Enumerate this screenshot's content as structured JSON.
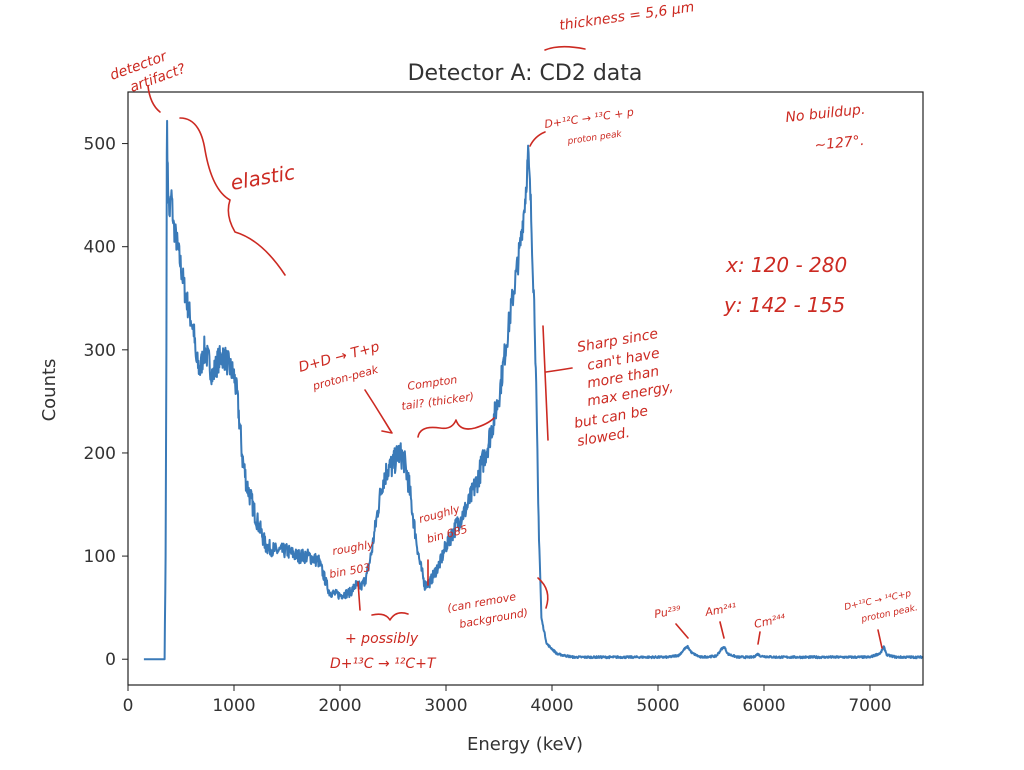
{
  "chart_data": {
    "type": "line",
    "title": "Detector A: CD2 data",
    "xlabel": "Energy (keV)",
    "ylabel": "Counts",
    "xlim": [
      0,
      7500
    ],
    "ylim": [
      -25,
      550
    ],
    "xticks": [
      0,
      1000,
      2000,
      3000,
      4000,
      5000,
      6000,
      7000
    ],
    "yticks": [
      0,
      100,
      200,
      300,
      400,
      500
    ],
    "grid": false,
    "series_color": "#3a7ab8",
    "series": [
      {
        "points": [
          [
            150,
            0
          ],
          [
            345,
            0
          ],
          [
            355,
            100
          ],
          [
            362,
            300
          ],
          [
            366,
            490
          ],
          [
            369,
            522
          ],
          [
            375,
            470
          ],
          [
            390,
            430
          ],
          [
            410,
            450
          ],
          [
            430,
            420
          ],
          [
            460,
            405
          ],
          [
            500,
            380
          ],
          [
            540,
            355
          ],
          [
            580,
            335
          ],
          [
            620,
            320
          ],
          [
            640,
            290
          ],
          [
            680,
            280
          ],
          [
            720,
            300
          ],
          [
            760,
            290
          ],
          [
            800,
            275
          ],
          [
            850,
            290
          ],
          [
            900,
            295
          ],
          [
            950,
            285
          ],
          [
            1000,
            275
          ],
          [
            1030,
            255
          ],
          [
            1060,
            220
          ],
          [
            1080,
            195
          ],
          [
            1120,
            170
          ],
          [
            1160,
            155
          ],
          [
            1200,
            140
          ],
          [
            1250,
            125
          ],
          [
            1300,
            110
          ],
          [
            1400,
            105
          ],
          [
            1500,
            105
          ],
          [
            1600,
            100
          ],
          [
            1700,
            100
          ],
          [
            1800,
            95
          ],
          [
            1850,
            80
          ],
          [
            1900,
            65
          ],
          [
            2000,
            62
          ],
          [
            2100,
            65
          ],
          [
            2150,
            72
          ],
          [
            2200,
            70
          ],
          [
            2250,
            80
          ],
          [
            2300,
            105
          ],
          [
            2350,
            140
          ],
          [
            2400,
            172
          ],
          [
            2450,
            185
          ],
          [
            2500,
            188
          ],
          [
            2550,
            200
          ],
          [
            2600,
            195
          ],
          [
            2650,
            170
          ],
          [
            2700,
            130
          ],
          [
            2750,
            95
          ],
          [
            2800,
            72
          ],
          [
            2850,
            75
          ],
          [
            2900,
            85
          ],
          [
            2950,
            95
          ],
          [
            3000,
            110
          ],
          [
            3100,
            130
          ],
          [
            3200,
            148
          ],
          [
            3300,
            175
          ],
          [
            3400,
            210
          ],
          [
            3500,
            255
          ],
          [
            3600,
            330
          ],
          [
            3700,
            400
          ],
          [
            3750,
            450
          ],
          [
            3775,
            490
          ],
          [
            3800,
            440
          ],
          [
            3840,
            320
          ],
          [
            3870,
            150
          ],
          [
            3900,
            40
          ],
          [
            3950,
            15
          ],
          [
            4050,
            5
          ],
          [
            4200,
            2
          ],
          [
            4500,
            2
          ],
          [
            4800,
            2
          ],
          [
            5100,
            2
          ],
          [
            5200,
            4
          ],
          [
            5250,
            10
          ],
          [
            5280,
            12
          ],
          [
            5320,
            6
          ],
          [
            5400,
            2
          ],
          [
            5550,
            3
          ],
          [
            5600,
            10
          ],
          [
            5625,
            12
          ],
          [
            5660,
            5
          ],
          [
            5750,
            2
          ],
          [
            5900,
            2
          ],
          [
            5940,
            5
          ],
          [
            5970,
            3
          ],
          [
            6100,
            2
          ],
          [
            6500,
            2
          ],
          [
            7000,
            2
          ],
          [
            7100,
            6
          ],
          [
            7130,
            12
          ],
          [
            7160,
            4
          ],
          [
            7250,
            2
          ],
          [
            7500,
            2
          ]
        ]
      }
    ]
  },
  "notes": {
    "detector_artifact_1": "detector",
    "detector_artifact_2": "artifact?",
    "thickness": "thickness = 5,6 µm",
    "elastic": "elastic",
    "proton_peak_1": "D+¹²C → ¹³C + p",
    "proton_peak_2": "proton peak",
    "buildup_1": "No buildup.",
    "buildup_2": "~127°.",
    "x_range": "x: 120 - 280",
    "y_range": "y: 142 - 155",
    "dd_1": "D+D → T+p",
    "dd_2": "proton-peak",
    "compton_1": "Compton",
    "compton_2": "tail? (thicker)",
    "sharp_1": "Sharp since",
    "sharp_2": "can't have",
    "sharp_3": "more than",
    "sharp_4": "max energy,",
    "sharp_5": "but can be",
    "sharp_6": "slowed.",
    "bin503_1": "roughly",
    "bin503_2": "bin 503",
    "bin685_1": "roughly",
    "bin685_2": "bin 685",
    "background_1": "(can remove",
    "background_2": "background)",
    "possibly_1": "+ possibly",
    "possibly_2": "D+¹³C → ¹²C+T",
    "pu": "Pu²³⁹",
    "am": "Am²⁴¹",
    "cm": "Cm²⁴⁴",
    "c14_1": "D+¹³C → ¹⁴C+p",
    "c14_2": "proton peak."
  }
}
